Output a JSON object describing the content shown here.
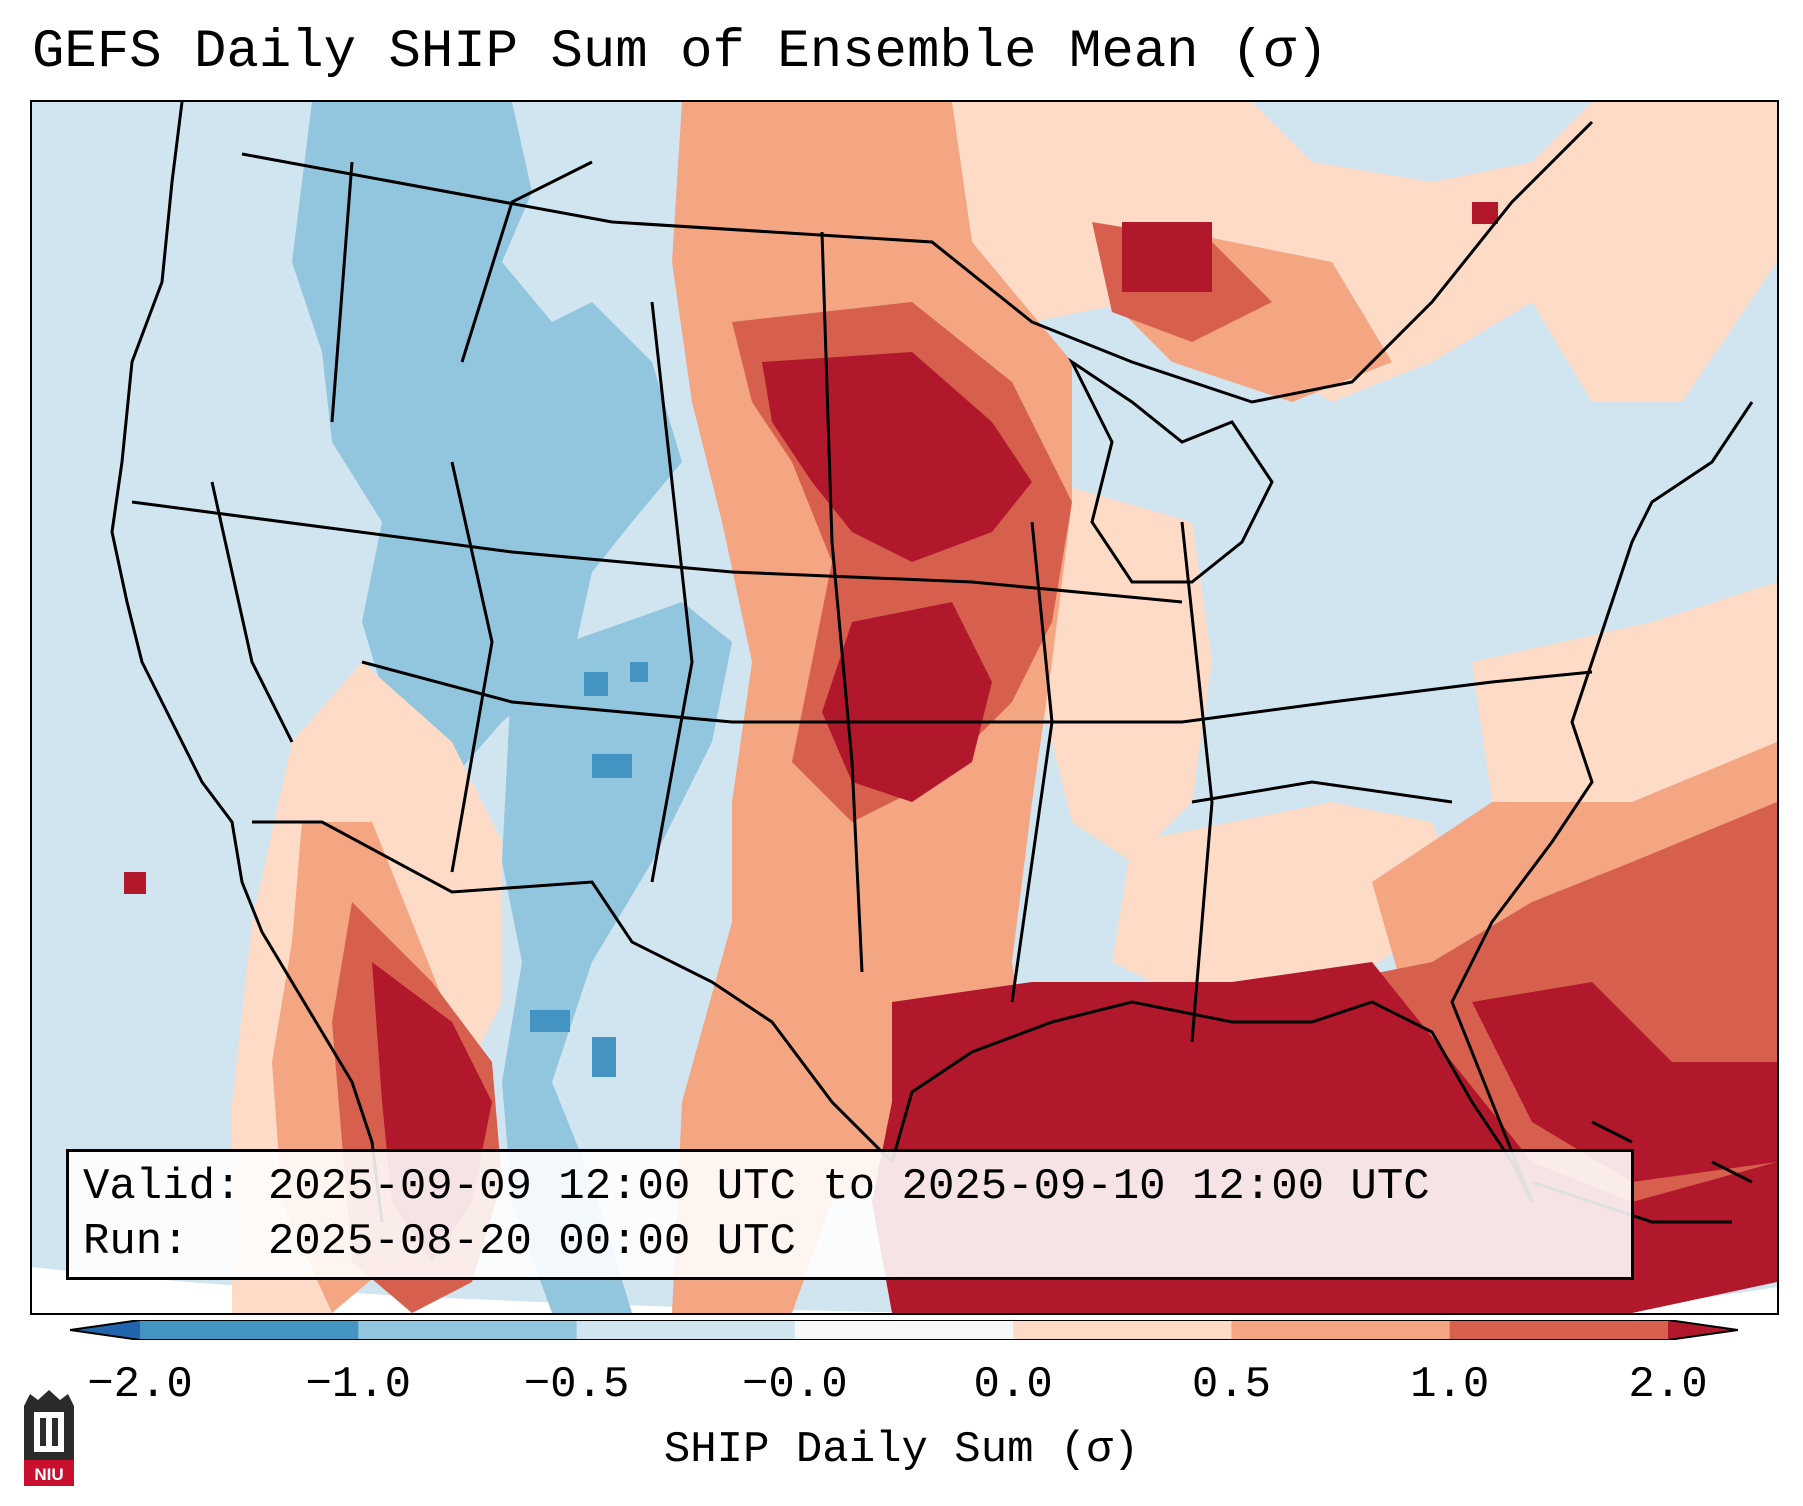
{
  "title": "GEFS Daily SHIP Sum of Ensemble Mean (σ)",
  "info": {
    "valid_label": "Valid:",
    "valid_value": "2025-09-09 12:00 UTC to 2025-09-10 12:00 UTC",
    "run_label": "Run:",
    "run_value": "2025-08-20 00:00 UTC"
  },
  "colorbar": {
    "label": "SHIP Daily Sum (σ)",
    "ticks": [
      "−2.0",
      "−1.0",
      "−0.5",
      "−0.0",
      "0.0",
      "0.5",
      "1.0",
      "2.0"
    ],
    "colors": [
      "#2166ac",
      "#4393c3",
      "#92c5de",
      "#d1e5f0",
      "#f7f7f7",
      "#fddbc7",
      "#f4a582",
      "#d6604d",
      "#b2182b"
    ],
    "extend": "both"
  },
  "logo": {
    "text": "NIU",
    "icon": "niu-logo-icon"
  },
  "map": {
    "projection": "Lambert conformal (CONUS)",
    "region": "Contiguous United States, northern Mexico, Gulf of Mexico, western Atlantic",
    "features": [
      "state borders",
      "coastlines",
      "country borders",
      "Great Lakes"
    ]
  }
}
